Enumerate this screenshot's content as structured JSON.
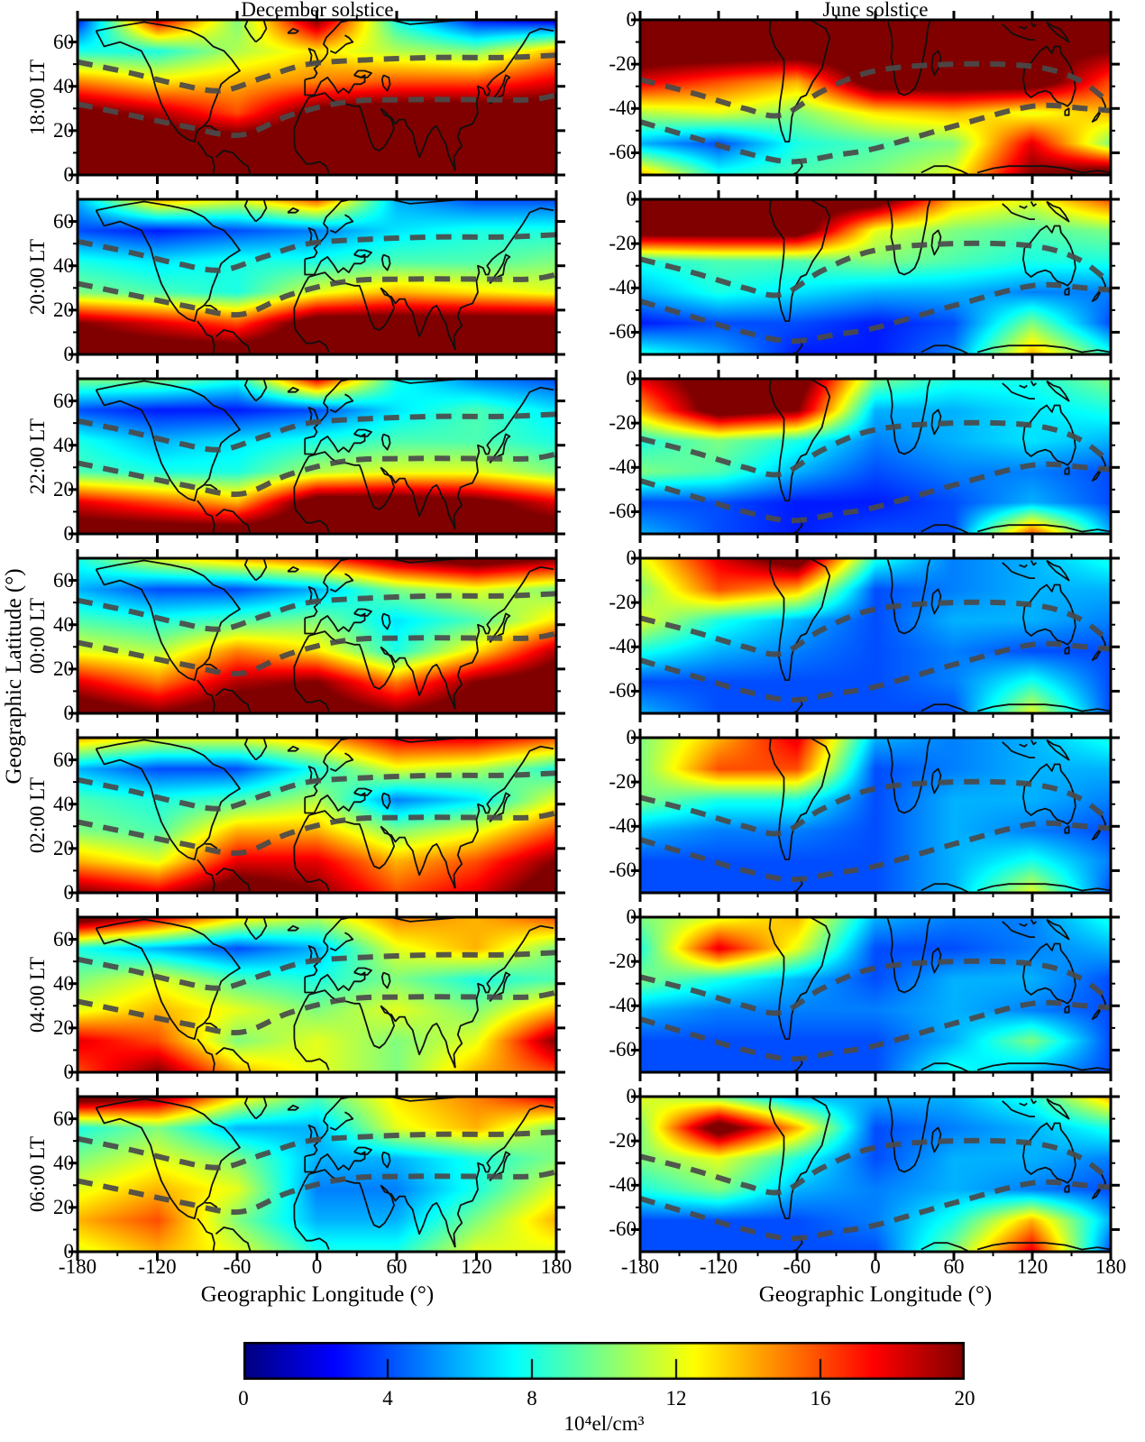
{
  "figure": {
    "column_titles": [
      "December solstice",
      "June solstice"
    ],
    "row_labels": [
      "18:00 LT",
      "20:00 LT",
      "22:00 LT",
      "00:00 LT",
      "02:00 LT",
      "04:00 LT",
      "06:00 LT"
    ],
    "y_axis_label": "Geographic Latitude (°)",
    "x_axis_label": "Geographic Longitude (°)",
    "x_tick_labels": [
      "-180",
      "-120",
      "-60",
      "0",
      "60",
      "120",
      "180"
    ],
    "y_tick_labels_north": [
      "60",
      "40",
      "20",
      "0"
    ],
    "y_tick_labels_south": [
      "0",
      "-20",
      "-40",
      "-60"
    ],
    "colorbar": {
      "tick_labels": [
        "0",
        "4",
        "8",
        "12",
        "16",
        "20"
      ],
      "unit_label": "10⁴el/cm³"
    }
  },
  "chart_data": {
    "type": "heatmap",
    "colormap": "jet",
    "value_unit": "10^4 el/cm^3",
    "value_range": [
      0,
      20
    ],
    "xlabel": "Geographic Longitude (°)",
    "ylabel": "Geographic Latitude (°)",
    "x_ticks": [
      -180,
      -120,
      -60,
      0,
      60,
      120,
      180
    ],
    "lon_grid": [
      -180,
      -120,
      -60,
      0,
      60,
      120,
      180
    ],
    "columns": [
      {
        "title": "December solstice",
        "hemisphere": "north",
        "lat_range": [
          0,
          70
        ],
        "y_ticks": [
          0,
          20,
          40,
          60
        ],
        "lat_grid": [
          70,
          56,
          42,
          28,
          14,
          0
        ]
      },
      {
        "title": "June solstice",
        "hemisphere": "south",
        "lat_range": [
          -70,
          0
        ],
        "y_ticks": [
          -60,
          -40,
          -20,
          0
        ],
        "lat_grid": [
          0,
          -14,
          -28,
          -42,
          -56,
          -70
        ]
      }
    ],
    "local_times": [
      "18:00 LT",
      "20:00 LT",
      "22:00 LT",
      "00:00 LT",
      "02:00 LT",
      "04:00 LT",
      "06:00 LT"
    ],
    "panels": [
      {
        "lt": "18:00 LT",
        "column": "December solstice",
        "values": [
          [
            3,
            18,
            10,
            20,
            8,
            3,
            2
          ],
          [
            8,
            8,
            11,
            13,
            11,
            10,
            14
          ],
          [
            15,
            13,
            14,
            15,
            16,
            16,
            18
          ],
          [
            21,
            19,
            16,
            21,
            22,
            22,
            22
          ],
          [
            22,
            22,
            22,
            22,
            22,
            22,
            22
          ],
          [
            22,
            22,
            22,
            22,
            22,
            22,
            22
          ]
        ]
      },
      {
        "lt": "18:00 LT",
        "column": "June solstice",
        "values": [
          [
            22,
            22,
            22,
            22,
            22,
            22,
            22
          ],
          [
            22,
            22,
            22,
            22,
            22,
            21,
            20
          ],
          [
            18,
            16,
            14,
            22,
            22,
            22,
            16
          ],
          [
            11,
            12,
            10,
            13,
            14,
            12,
            14
          ],
          [
            6,
            4,
            8,
            9,
            10,
            18,
            10
          ],
          [
            14,
            8,
            9,
            10,
            12,
            20,
            22
          ]
        ]
      },
      {
        "lt": "20:00 LT",
        "column": "December solstice",
        "values": [
          [
            6,
            14,
            12,
            16,
            6,
            4,
            4
          ],
          [
            4,
            3,
            4,
            5,
            7,
            8,
            8
          ],
          [
            8,
            7,
            8,
            8,
            9,
            9,
            10
          ],
          [
            10,
            9,
            8,
            12,
            14,
            13,
            12
          ],
          [
            20,
            18,
            16,
            22,
            22,
            22,
            22
          ],
          [
            22,
            22,
            22,
            22,
            22,
            22,
            22
          ]
        ]
      },
      {
        "lt": "20:00 LT",
        "column": "June solstice",
        "values": [
          [
            22,
            22,
            22,
            22,
            14,
            12,
            16
          ],
          [
            22,
            22,
            22,
            12,
            10,
            9,
            10
          ],
          [
            8,
            9,
            9,
            10,
            9,
            8,
            8
          ],
          [
            6,
            8,
            7,
            6,
            6,
            5,
            5
          ],
          [
            3,
            4,
            4,
            3,
            4,
            10,
            4
          ],
          [
            8,
            6,
            3,
            3,
            5,
            14,
            8
          ]
        ]
      },
      {
        "lt": "22:00 LT",
        "column": "December solstice",
        "values": [
          [
            10,
            10,
            8,
            18,
            8,
            5,
            4
          ],
          [
            4,
            3,
            3,
            4,
            7,
            9,
            7
          ],
          [
            8,
            6,
            7,
            8,
            9,
            9,
            8
          ],
          [
            9,
            8,
            8,
            11,
            12,
            12,
            10
          ],
          [
            18,
            16,
            14,
            22,
            22,
            21,
            18
          ],
          [
            22,
            22,
            22,
            22,
            22,
            22,
            22
          ]
        ]
      },
      {
        "lt": "22:00 LT",
        "column": "June solstice",
        "values": [
          [
            18,
            22,
            22,
            10,
            8,
            8,
            10
          ],
          [
            14,
            22,
            20,
            6,
            6,
            7,
            8
          ],
          [
            8,
            10,
            8,
            5,
            6,
            7,
            6
          ],
          [
            10,
            9,
            6,
            4,
            5,
            5,
            4
          ],
          [
            4,
            4,
            3,
            3,
            4,
            6,
            4
          ],
          [
            6,
            4,
            3,
            4,
            4,
            16,
            6
          ]
        ]
      },
      {
        "lt": "00:00 LT",
        "column": "December solstice",
        "values": [
          [
            8,
            12,
            14,
            16,
            20,
            22,
            20
          ],
          [
            6,
            4,
            4,
            6,
            10,
            12,
            10
          ],
          [
            9,
            8,
            9,
            10,
            7,
            9,
            13
          ],
          [
            12,
            11,
            15,
            13,
            8,
            13,
            19
          ],
          [
            18,
            15,
            19,
            20,
            15,
            20,
            22
          ],
          [
            22,
            20,
            22,
            22,
            20,
            22,
            22
          ]
        ]
      },
      {
        "lt": "00:00 LT",
        "column": "June solstice",
        "values": [
          [
            12,
            18,
            22,
            8,
            5,
            6,
            8
          ],
          [
            10,
            16,
            14,
            4,
            5,
            6,
            6
          ],
          [
            12,
            8,
            6,
            4,
            6,
            6,
            5
          ],
          [
            8,
            6,
            5,
            4,
            5,
            4,
            4
          ],
          [
            4,
            4,
            4,
            4,
            5,
            8,
            4
          ],
          [
            6,
            4,
            4,
            4,
            4,
            12,
            4
          ]
        ]
      },
      {
        "lt": "02:00 LT",
        "column": "December solstice",
        "values": [
          [
            14,
            12,
            12,
            14,
            18,
            18,
            16
          ],
          [
            6,
            4,
            4,
            8,
            12,
            11,
            8
          ],
          [
            9,
            8,
            9,
            11,
            5,
            7,
            12
          ],
          [
            10,
            9,
            14,
            14,
            10,
            12,
            16
          ],
          [
            14,
            12,
            18,
            18,
            14,
            16,
            20
          ],
          [
            20,
            18,
            22,
            20,
            16,
            18,
            22
          ]
        ]
      },
      {
        "lt": "02:00 LT",
        "column": "June solstice",
        "values": [
          [
            10,
            14,
            18,
            6,
            5,
            6,
            8
          ],
          [
            10,
            16,
            16,
            4,
            5,
            6,
            6
          ],
          [
            10,
            8,
            8,
            4,
            6,
            6,
            5
          ],
          [
            6,
            5,
            5,
            4,
            6,
            5,
            4
          ],
          [
            4,
            4,
            4,
            4,
            6,
            8,
            5
          ],
          [
            4,
            4,
            4,
            4,
            6,
            12,
            4
          ]
        ]
      },
      {
        "lt": "04:00 LT",
        "column": "December solstice",
        "values": [
          [
            22,
            18,
            13,
            11,
            15,
            14,
            16
          ],
          [
            8,
            6,
            4,
            6,
            12,
            14,
            10
          ],
          [
            10,
            12,
            9,
            8,
            10,
            8,
            9
          ],
          [
            12,
            14,
            12,
            10,
            12,
            10,
            14
          ],
          [
            18,
            16,
            10,
            12,
            10,
            12,
            20
          ],
          [
            16,
            20,
            14,
            12,
            10,
            14,
            16
          ]
        ]
      },
      {
        "lt": "04:00 LT",
        "column": "June solstice",
        "values": [
          [
            10,
            12,
            14,
            6,
            5,
            5,
            8
          ],
          [
            8,
            18,
            12,
            4,
            4,
            5,
            6
          ],
          [
            10,
            8,
            6,
            4,
            6,
            6,
            4
          ],
          [
            6,
            5,
            5,
            5,
            6,
            5,
            4
          ],
          [
            4,
            4,
            4,
            4,
            6,
            10,
            4
          ],
          [
            4,
            4,
            4,
            4,
            8,
            6,
            4
          ]
        ]
      },
      {
        "lt": "06:00 LT",
        "column": "December solstice",
        "values": [
          [
            22,
            20,
            13,
            9,
            13,
            15,
            18
          ],
          [
            8,
            10,
            6,
            6,
            12,
            14,
            10
          ],
          [
            10,
            12,
            10,
            6,
            6,
            8,
            10
          ],
          [
            12,
            14,
            12,
            5,
            5,
            8,
            12
          ],
          [
            14,
            16,
            10,
            6,
            6,
            10,
            14
          ],
          [
            12,
            14,
            12,
            8,
            8,
            12,
            12
          ]
        ]
      },
      {
        "lt": "06:00 LT",
        "column": "June solstice",
        "values": [
          [
            12,
            10,
            6,
            6,
            6,
            8,
            14
          ],
          [
            10,
            22,
            14,
            4,
            5,
            6,
            8
          ],
          [
            10,
            12,
            8,
            4,
            6,
            6,
            5
          ],
          [
            8,
            10,
            6,
            5,
            6,
            5,
            4
          ],
          [
            4,
            4,
            4,
            5,
            8,
            14,
            6
          ],
          [
            4,
            4,
            4,
            4,
            10,
            18,
            4
          ]
        ]
      }
    ],
    "dashed_lines": {
      "style": "dashed gray reference contours",
      "color": "#4a4a4a",
      "north": [
        [
          [
            -180,
            51
          ],
          [
            -140,
            46
          ],
          [
            -105,
            41
          ],
          [
            -72,
            38
          ],
          [
            -40,
            44
          ],
          [
            -6,
            50
          ],
          [
            40,
            52
          ],
          [
            90,
            53
          ],
          [
            140,
            53
          ],
          [
            180,
            54
          ]
        ],
        [
          [
            -180,
            32
          ],
          [
            -140,
            27
          ],
          [
            -100,
            22
          ],
          [
            -58,
            18
          ],
          [
            -20,
            27
          ],
          [
            23,
            33
          ],
          [
            70,
            34
          ],
          [
            120,
            34
          ],
          [
            160,
            34
          ],
          [
            180,
            36
          ]
        ]
      ],
      "south": [
        [
          [
            -180,
            -27
          ],
          [
            -140,
            -33
          ],
          [
            -100,
            -40
          ],
          [
            -72,
            -43
          ],
          [
            -40,
            -32
          ],
          [
            0,
            -23
          ],
          [
            60,
            -20
          ],
          [
            120,
            -21
          ],
          [
            155,
            -27
          ],
          [
            180,
            -38
          ]
        ],
        [
          [
            -180,
            -46
          ],
          [
            -140,
            -53
          ],
          [
            -100,
            -60
          ],
          [
            -65,
            -64
          ],
          [
            -30,
            -61
          ],
          [
            0,
            -58
          ],
          [
            60,
            -48
          ],
          [
            120,
            -39
          ],
          [
            160,
            -40
          ],
          [
            180,
            -41
          ]
        ]
      ]
    },
    "colorbar": {
      "min": 0,
      "max": 20,
      "ticks": [
        0,
        4,
        8,
        12,
        16,
        20
      ],
      "label": "10⁴el/cm³"
    }
  }
}
